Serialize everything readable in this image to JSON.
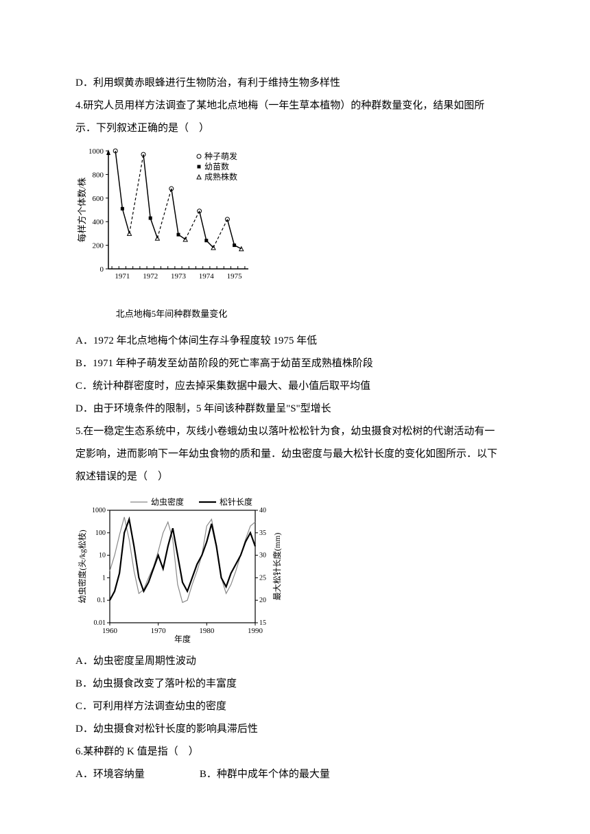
{
  "lines": {
    "d_option": "D．利用螟黄赤眼蜂进行生物防治，有利于维持生物多样性",
    "q4_intro1": "4.研究人员用样方法调查了某地北点地梅（一年生草本植物）的种群数量变化，结果如图所",
    "q4_intro2": "示．下列叙述正确的是（　）",
    "q4_a": "A．1972 年北点地梅个体间生存斗争程度较 1975 年低",
    "q4_b": "B．1971 年种子萌发至幼苗阶段的死亡率高于幼苗至成熟植株阶段",
    "q4_c": "C．统计种群密度时，应去掉采集数据中最大、最小值后取平均值",
    "q4_d": "D．由于环境条件的限制，5 年间该种群数量呈\"S\"型增长",
    "q5_intro1": "5.在一稳定生态系统中，灰线小卷蛾幼虫以落叶松松针为食，幼虫摄食对松树的代谢活动有一",
    "q5_intro2": "定影响，进而影响下一年幼虫食物的质和量．幼虫密度与最大松针长度的变化如图所示．以下",
    "q5_intro3": "叙述错误的是（　）",
    "q5_a": "A．幼虫密度呈周期性波动",
    "q5_b": "B．幼虫摄食改变了落叶松的丰富度",
    "q5_c": "C．可利用样方法调查幼虫的密度",
    "q5_d": "D．幼虫摄食对松针长度的影响具滞后性",
    "q6_intro": "6.某种群的 K 值是指（　）",
    "q6_a": "A．环境容纳量",
    "q6_b": "B．种群中成年个体的最大量"
  },
  "chart1": {
    "y_label": "每样方个体数/株",
    "y_ticks": [
      0,
      200,
      400,
      600,
      800,
      1000
    ],
    "x_ticks": [
      "1971",
      "1972",
      "1973",
      "1974",
      "1975"
    ],
    "caption": "北点地梅5年间种群数量变化",
    "legend": {
      "seed": "种子萌发",
      "seedling": "幼苗数",
      "mature": "成熟株数"
    },
    "series": {
      "seed": [
        1000,
        970,
        680,
        490,
        420
      ],
      "seedling": [
        510,
        430,
        290,
        240,
        200
      ],
      "mature": [
        300,
        260,
        250,
        180,
        170
      ]
    },
    "colors": {
      "line": "#000000",
      "background": "#ffffff",
      "tick_font_size": 11,
      "label_font_size": 13
    }
  },
  "chart2": {
    "y_left_label": "幼虫密度(头/kg松枝)",
    "y_right_label": "最大松针长度(mm)",
    "x_label": "年度",
    "y_left_ticks": [
      "0.01",
      "0.1",
      "1",
      "10",
      "100",
      "1000"
    ],
    "y_right_ticks": [
      15,
      20,
      25,
      30,
      35,
      40
    ],
    "x_ticks": [
      1960,
      1970,
      1980,
      1990
    ],
    "legend": {
      "density": "幼虫密度",
      "length": "松针长度"
    },
    "density_data": [
      [
        1960,
        2
      ],
      [
        1961,
        10
      ],
      [
        1962,
        80
      ],
      [
        1963,
        500
      ],
      [
        1964,
        50
      ],
      [
        1965,
        2
      ],
      [
        1966,
        0.2
      ],
      [
        1967,
        0.3
      ],
      [
        1968,
        1
      ],
      [
        1969,
        3
      ],
      [
        1970,
        15
      ],
      [
        1971,
        100
      ],
      [
        1972,
        300
      ],
      [
        1973,
        50
      ],
      [
        1974,
        0.5
      ],
      [
        1975,
        0.08
      ],
      [
        1976,
        0.1
      ],
      [
        1977,
        0.5
      ],
      [
        1978,
        2
      ],
      [
        1979,
        10
      ],
      [
        1980,
        200
      ],
      [
        1981,
        400
      ],
      [
        1982,
        30
      ],
      [
        1983,
        1
      ],
      [
        1984,
        0.2
      ],
      [
        1985,
        0.5
      ],
      [
        1986,
        2
      ],
      [
        1987,
        10
      ],
      [
        1988,
        50
      ],
      [
        1989,
        200
      ],
      [
        1990,
        300
      ]
    ],
    "length_data": [
      [
        1960,
        20
      ],
      [
        1961,
        22
      ],
      [
        1962,
        26
      ],
      [
        1963,
        35
      ],
      [
        1964,
        38
      ],
      [
        1965,
        32
      ],
      [
        1966,
        25
      ],
      [
        1967,
        22
      ],
      [
        1968,
        24
      ],
      [
        1969,
        27
      ],
      [
        1970,
        30
      ],
      [
        1971,
        27
      ],
      [
        1972,
        32
      ],
      [
        1973,
        36
      ],
      [
        1974,
        30
      ],
      [
        1975,
        24
      ],
      [
        1976,
        22
      ],
      [
        1977,
        25
      ],
      [
        1978,
        28
      ],
      [
        1979,
        30
      ],
      [
        1980,
        33
      ],
      [
        1981,
        37
      ],
      [
        1982,
        32
      ],
      [
        1983,
        25
      ],
      [
        1984,
        23
      ],
      [
        1985,
        26
      ],
      [
        1986,
        28
      ],
      [
        1987,
        30
      ],
      [
        1988,
        33
      ],
      [
        1989,
        35
      ],
      [
        1990,
        32
      ]
    ],
    "colors": {
      "density_line": "#888888",
      "length_line": "#000000",
      "density_line_width": 1.2,
      "length_line_width": 2.2
    }
  }
}
